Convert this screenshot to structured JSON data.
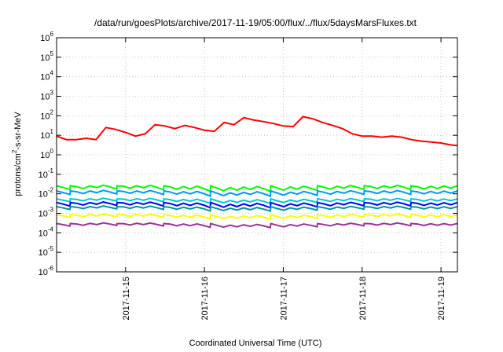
{
  "chart_data": {
    "type": "line",
    "title": "/data/run/goesPlots/archive/2017-11-19/05:00/flux/../flux/5daysMarsFluxes.txt",
    "xlabel": "Coordinated Universal Time (UTC)",
    "ylabel": "protons/cm²-s-sr-MeV",
    "ylabel_parts": {
      "pre": "protons/cm",
      "sup": "2",
      "post": "-s-sr-MeV"
    },
    "y_scale": "log",
    "ylim": [
      1e-06,
      1000000.0
    ],
    "y_ticks": [
      {
        "value": 1e-06,
        "base": "10",
        "exp": "-6"
      },
      {
        "value": 1e-05,
        "base": "10",
        "exp": "-5"
      },
      {
        "value": 0.0001,
        "base": "10",
        "exp": "-4"
      },
      {
        "value": 0.001,
        "base": "10",
        "exp": "-3"
      },
      {
        "value": 0.01,
        "base": "10",
        "exp": "-2"
      },
      {
        "value": 0.1,
        "base": "10",
        "exp": "-1"
      },
      {
        "value": 1,
        "base": "10",
        "exp": "0"
      },
      {
        "value": 10.0,
        "base": "10",
        "exp": "1"
      },
      {
        "value": 100.0,
        "base": "10",
        "exp": "2"
      },
      {
        "value": 1000.0,
        "base": "10",
        "exp": "3"
      },
      {
        "value": 10000.0,
        "base": "10",
        "exp": "4"
      },
      {
        "value": 100000.0,
        "base": "10",
        "exp": "5"
      },
      {
        "value": 1000000.0,
        "base": "10",
        "exp": "6"
      }
    ],
    "xlim": [
      "2017-11-14 03:00",
      "2017-11-19 05:00"
    ],
    "x_ticks": [
      "2017-11-15",
      "2017-11-16",
      "2017-11-17",
      "2017-11-18",
      "2017-11-19"
    ],
    "grid": true,
    "legend": "none",
    "series": [
      {
        "color": "#ff0000",
        "x": [
          "2017-11-14 03:00",
          "2017-11-14 06:00",
          "2017-11-14 09:00",
          "2017-11-14 12:00",
          "2017-11-14 15:00",
          "2017-11-14 18:00",
          "2017-11-14 21:00",
          "2017-11-15 00:00",
          "2017-11-15 03:00",
          "2017-11-15 06:00",
          "2017-11-15 09:00",
          "2017-11-15 12:00",
          "2017-11-15 15:00",
          "2017-11-15 18:00",
          "2017-11-15 21:00",
          "2017-11-16 00:00",
          "2017-11-16 03:00",
          "2017-11-16 06:00",
          "2017-11-16 09:00",
          "2017-11-16 12:00",
          "2017-11-16 15:00",
          "2017-11-16 18:00",
          "2017-11-16 21:00",
          "2017-11-17 00:00",
          "2017-11-17 03:00",
          "2017-11-17 06:00",
          "2017-11-17 09:00",
          "2017-11-17 12:00",
          "2017-11-17 15:00",
          "2017-11-17 18:00",
          "2017-11-17 21:00",
          "2017-11-18 00:00",
          "2017-11-18 03:00",
          "2017-11-18 06:00",
          "2017-11-18 09:00",
          "2017-11-18 12:00",
          "2017-11-18 15:00",
          "2017-11-18 18:00",
          "2017-11-18 21:00",
          "2017-11-19 00:00",
          "2017-11-19 03:00",
          "2017-11-19 05:00"
        ],
        "y": [
          9,
          6,
          6,
          7,
          6,
          25,
          20,
          14,
          9,
          12,
          35,
          30,
          22,
          32,
          25,
          18,
          16,
          45,
          35,
          80,
          60,
          50,
          40,
          30,
          28,
          90,
          70,
          45,
          32,
          22,
          12,
          9,
          9,
          8,
          9,
          8,
          6,
          5,
          4.5,
          4,
          3.2,
          3
        ]
      },
      {
        "color": "#00ff00",
        "base": 0.02,
        "amplitude": 0.012
      },
      {
        "color": "#0099ff",
        "base": 0.011,
        "amplitude": 0.006
      },
      {
        "color": "#00cccc",
        "base": 0.0045,
        "amplitude": 0.002
      },
      {
        "color": "#0000ff",
        "base": 0.0028,
        "amplitude": 0.0015
      },
      {
        "color": "#009999",
        "base": 0.0018,
        "amplitude": 0.0008
      },
      {
        "color": "#ffff00",
        "base": 0.0007,
        "amplitude": 0.0003
      },
      {
        "color": "#993399",
        "base": 0.00025,
        "amplitude": 0.0001
      }
    ]
  }
}
